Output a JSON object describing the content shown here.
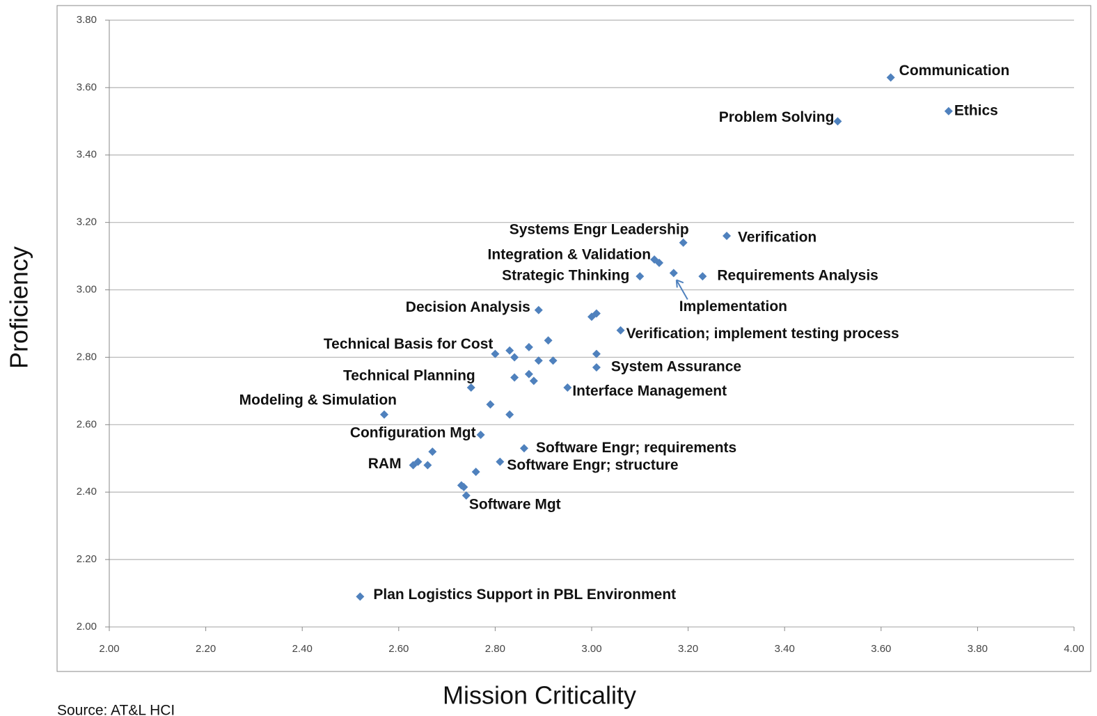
{
  "chart_data": {
    "type": "scatter",
    "x_label": "Mission Criticality",
    "y_label": "Proficiency",
    "source": "Source: AT&L HCI",
    "color": "#4f81bd",
    "grid": true,
    "xlim": [
      2,
      4
    ],
    "ylim": [
      2,
      3.8
    ],
    "xticks": [
      {
        "value": 2,
        "label": "2.00"
      },
      {
        "value": 2.2,
        "label": "2.20"
      },
      {
        "value": 2.4,
        "label": "2.40"
      },
      {
        "value": 2.6,
        "label": "2.60"
      },
      {
        "value": 2.8,
        "label": "2.80"
      },
      {
        "value": 3,
        "label": "3.00"
      },
      {
        "value": 3.2,
        "label": "3.20"
      },
      {
        "value": 3.4,
        "label": "3.40"
      },
      {
        "value": 3.6,
        "label": "3.60"
      },
      {
        "value": 3.8,
        "label": "3.80"
      },
      {
        "value": 4,
        "label": "4.00"
      }
    ],
    "yticks": [
      {
        "value": 2,
        "label": "2.00"
      },
      {
        "value": 2.2,
        "label": "2.20"
      },
      {
        "value": 2.4,
        "label": "2.40"
      },
      {
        "value": 2.6,
        "label": "2.60"
      },
      {
        "value": 2.8,
        "label": "2.80"
      },
      {
        "value": 3,
        "label": "3.00"
      },
      {
        "value": 3.2,
        "label": "3.20"
      },
      {
        "value": 3.4,
        "label": "3.40"
      },
      {
        "value": 3.6,
        "label": "3.60"
      },
      {
        "value": 3.8,
        "label": "3.80"
      }
    ],
    "x": [
      3.62,
      3.74,
      3.51,
      3.19,
      3.28,
      3.13,
      3.14,
      3.1,
      3.17,
      3.23,
      2.89,
      3.0,
      3.01,
      3.06,
      2.91,
      2.8,
      2.83,
      2.84,
      2.87,
      2.89,
      2.92,
      3.01,
      3.01,
      2.84,
      2.87,
      2.88,
      2.75,
      2.95,
      2.57,
      2.79,
      2.83,
      2.77,
      2.67,
      2.86,
      2.63,
      2.64,
      2.66,
      2.81,
      2.76,
      2.73,
      2.735,
      2.74,
      2.52
    ],
    "y": [
      3.63,
      3.53,
      3.5,
      3.14,
      3.16,
      3.09,
      3.08,
      3.04,
      3.05,
      3.04,
      2.94,
      2.92,
      2.93,
      2.88,
      2.85,
      2.81,
      2.82,
      2.8,
      2.83,
      2.79,
      2.79,
      2.81,
      2.77,
      2.74,
      2.75,
      2.73,
      2.71,
      2.71,
      2.63,
      2.66,
      2.63,
      2.57,
      2.52,
      2.53,
      2.48,
      2.49,
      2.48,
      2.49,
      2.46,
      2.42,
      2.415,
      2.39,
      2.09
    ],
    "labels": [
      "Communication",
      "Ethics",
      "Problem Solving",
      "Systems Engr Leadership",
      "Verification",
      "Integration & Validation",
      null,
      "Strategic Thinking",
      "Implementation",
      "Requirements Analysis",
      "Decision Analysis",
      null,
      null,
      "Verification; implement testing process",
      null,
      "Technical Basis for Cost",
      null,
      null,
      null,
      null,
      null,
      null,
      "System Assurance",
      null,
      null,
      null,
      "Technical Planning",
      "Interface Management",
      "Modeling & Simulation",
      null,
      null,
      "Configuration Mgt",
      null,
      "Software Engr; requirements",
      "RAM",
      null,
      null,
      "Software Engr; structure",
      null,
      null,
      null,
      "Software Mgt",
      "Plan Logistics Support in PBL Environment"
    ]
  }
}
